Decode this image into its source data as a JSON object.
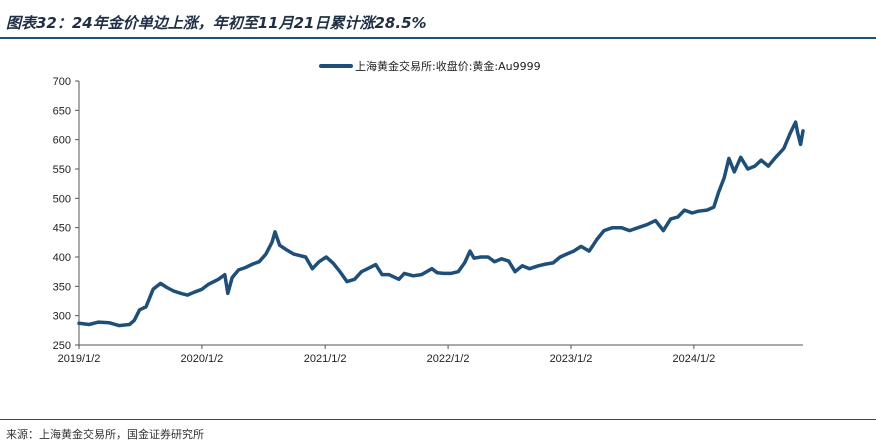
{
  "figure": {
    "title": "图表32：24年金价单边上涨，年初至11月21日累计涨28.5%",
    "source": "来源：上海黄金交易所，国金证券研究所"
  },
  "colors": {
    "series": "#1e4f7a",
    "rule": "#1e4f7a",
    "axis": "#555555"
  },
  "chart_data": {
    "type": "line",
    "title": "",
    "xlabel": "",
    "ylabel": "",
    "ylim": [
      250,
      700
    ],
    "yticks": [
      250,
      300,
      350,
      400,
      450,
      500,
      550,
      600,
      650,
      700
    ],
    "xticks": [
      "2019/1/2",
      "2020/1/2",
      "2021/1/2",
      "2022/1/2",
      "2023/1/2",
      "2024/1/2"
    ],
    "legend_position": "top-center",
    "grid": false,
    "series": [
      {
        "name": "上海黄金交易所:收盘价:黄金:Au9999",
        "points": [
          [
            "2019/1/2",
            287
          ],
          [
            "2019/2/1",
            285
          ],
          [
            "2019/3/1",
            289
          ],
          [
            "2019/4/1",
            288
          ],
          [
            "2019/5/1",
            283
          ],
          [
            "2019/6/1",
            285
          ],
          [
            "2019/6/15",
            292
          ],
          [
            "2019/7/1",
            310
          ],
          [
            "2019/7/20",
            315
          ],
          [
            "2019/8/10",
            345
          ],
          [
            "2019/9/1",
            355
          ],
          [
            "2019/9/20",
            348
          ],
          [
            "2019/10/10",
            342
          ],
          [
            "2019/11/1",
            338
          ],
          [
            "2019/11/20",
            335
          ],
          [
            "2019/12/10",
            340
          ],
          [
            "2020/1/2",
            345
          ],
          [
            "2020/1/20",
            353
          ],
          [
            "2020/2/20",
            362
          ],
          [
            "2020/3/10",
            370
          ],
          [
            "2020/3/19",
            338
          ],
          [
            "2020/4/1",
            365
          ],
          [
            "2020/4/20",
            378
          ],
          [
            "2020/5/10",
            382
          ],
          [
            "2020/6/1",
            388
          ],
          [
            "2020/6/20",
            392
          ],
          [
            "2020/7/10",
            405
          ],
          [
            "2020/7/28",
            425
          ],
          [
            "2020/8/6",
            443
          ],
          [
            "2020/8/20",
            420
          ],
          [
            "2020/9/10",
            412
          ],
          [
            "2020/10/1",
            405
          ],
          [
            "2020/11/5",
            400
          ],
          [
            "2020/11/25",
            380
          ],
          [
            "2020/12/15",
            392
          ],
          [
            "2021/1/5",
            400
          ],
          [
            "2021/1/25",
            390
          ],
          [
            "2021/2/15",
            375
          ],
          [
            "2021/3/8",
            358
          ],
          [
            "2021/3/30",
            362
          ],
          [
            "2021/4/20",
            375
          ],
          [
            "2021/5/15",
            382
          ],
          [
            "2021/6/1",
            387
          ],
          [
            "2021/6/20",
            370
          ],
          [
            "2021/7/10",
            370
          ],
          [
            "2021/8/9",
            362
          ],
          [
            "2021/8/25",
            372
          ],
          [
            "2021/9/20",
            368
          ],
          [
            "2021/10/15",
            370
          ],
          [
            "2021/11/15",
            380
          ],
          [
            "2021/12/1",
            373
          ],
          [
            "2021/12/20",
            372
          ],
          [
            "2022/1/10",
            372
          ],
          [
            "2022/2/1",
            375
          ],
          [
            "2022/2/20",
            390
          ],
          [
            "2022/3/8",
            410
          ],
          [
            "2022/3/20",
            398
          ],
          [
            "2022/4/10",
            400
          ],
          [
            "2022/5/1",
            400
          ],
          [
            "2022/5/20",
            392
          ],
          [
            "2022/6/10",
            397
          ],
          [
            "2022/7/1",
            393
          ],
          [
            "2022/7/20",
            375
          ],
          [
            "2022/8/10",
            385
          ],
          [
            "2022/9/1",
            380
          ],
          [
            "2022/9/27",
            385
          ],
          [
            "2022/10/20",
            388
          ],
          [
            "2022/11/10",
            390
          ],
          [
            "2022/12/1",
            400
          ],
          [
            "2022/12/20",
            405
          ],
          [
            "2023/1/10",
            410
          ],
          [
            "2023/2/1",
            418
          ],
          [
            "2023/2/25",
            410
          ],
          [
            "2023/3/20",
            430
          ],
          [
            "2023/4/10",
            445
          ],
          [
            "2023/5/5",
            450
          ],
          [
            "2023/6/1",
            450
          ],
          [
            "2023/6/25",
            445
          ],
          [
            "2023/7/20",
            450
          ],
          [
            "2023/8/15",
            455
          ],
          [
            "2023/9/10",
            462
          ],
          [
            "2023/10/3",
            445
          ],
          [
            "2023/10/25",
            465
          ],
          [
            "2023/11/15",
            468
          ],
          [
            "2023/12/5",
            480
          ],
          [
            "2023/12/28",
            475
          ],
          [
            "2024/1/15",
            478
          ],
          [
            "2024/2/10",
            480
          ],
          [
            "2024/3/1",
            485
          ],
          [
            "2024/3/15",
            510
          ],
          [
            "2024/4/1",
            535
          ],
          [
            "2024/4/15",
            568
          ],
          [
            "2024/5/1",
            545
          ],
          [
            "2024/5/20",
            570
          ],
          [
            "2024/6/10",
            550
          ],
          [
            "2024/7/1",
            555
          ],
          [
            "2024/7/20",
            565
          ],
          [
            "2024/8/10",
            555
          ],
          [
            "2024/9/1",
            570
          ],
          [
            "2024/9/25",
            585
          ],
          [
            "2024/10/15",
            612
          ],
          [
            "2024/10/30",
            630
          ],
          [
            "2024/11/5",
            612
          ],
          [
            "2024/11/14",
            592
          ],
          [
            "2024/11/21",
            615
          ]
        ]
      }
    ]
  }
}
